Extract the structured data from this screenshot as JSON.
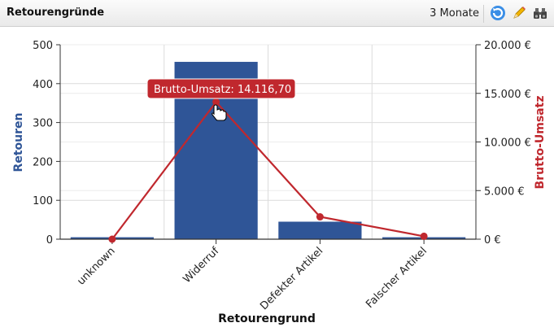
{
  "header": {
    "title": "Retourengründe",
    "period": "3 Monate",
    "buttons": [
      {
        "icon": "refresh-icon"
      },
      {
        "icon": "pencil-icon"
      },
      {
        "icon": "binoculars-icon"
      }
    ]
  },
  "tooltip": {
    "label": "Brutto-Umsatz",
    "value": "14.116,70 €"
  },
  "chart_data": {
    "type": "bar+line",
    "categories": [
      "unknown",
      "Widerruf",
      "Defekter Artikel",
      "Falscher Artikel"
    ],
    "bar_series": {
      "name": "Retouren",
      "values": [
        5,
        456,
        45,
        5
      ],
      "color": "#2f5597"
    },
    "line_series": {
      "name": "Brutto-Umsatz",
      "values": [
        0,
        14116.7,
        2300,
        300
      ],
      "color": "#c0282e"
    },
    "xlabel": "Retourengrund",
    "ylabel_left": "Retouren",
    "ylabel_right": "Brutto-Umsatz",
    "ylim_left": [
      0,
      500
    ],
    "yticks_left": [
      "0",
      "100",
      "200",
      "300",
      "400",
      "500"
    ],
    "ylim_right": [
      0,
      20000
    ],
    "yticks_right": [
      "0 €",
      "5.000 €",
      "10.000 €",
      "15.000 €",
      "20.000 €"
    ],
    "grid": true
  }
}
